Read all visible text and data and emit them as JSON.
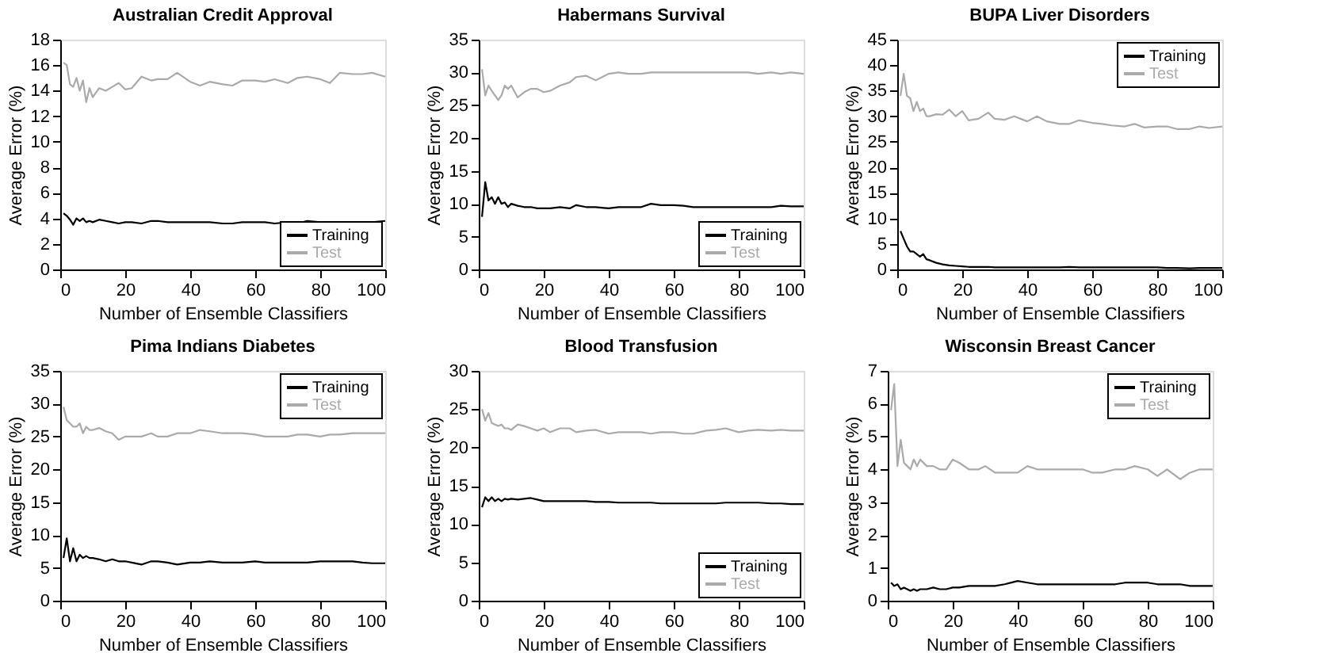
{
  "chart_data": [
    {
      "type": "line",
      "title": "Australian Credit Approval",
      "xlabel": "Number of Ensemble Classifiers",
      "ylabel": "Average Error (%)",
      "x": [
        1,
        2,
        3,
        4,
        5,
        6,
        7,
        8,
        9,
        10,
        12,
        14,
        16,
        18,
        20,
        22,
        25,
        28,
        30,
        33,
        36,
        40,
        43,
        46,
        50,
        53,
        56,
        60,
        63,
        66,
        70,
        73,
        76,
        80,
        83,
        86,
        90,
        93,
        96,
        100
      ],
      "xlim": [
        0,
        100
      ],
      "xticks": [
        0,
        20,
        40,
        60,
        80,
        100
      ],
      "ylim": [
        0,
        18
      ],
      "yticks": [
        0,
        2,
        4,
        6,
        8,
        10,
        12,
        14,
        16,
        18
      ],
      "grid": false,
      "legend": "bottom right",
      "series": [
        {
          "name": "Training",
          "color": "#000000",
          "values": [
            4.4,
            4.2,
            3.9,
            3.5,
            4.0,
            3.8,
            4.0,
            3.7,
            3.8,
            3.7,
            3.9,
            3.8,
            3.7,
            3.6,
            3.7,
            3.7,
            3.6,
            3.8,
            3.8,
            3.7,
            3.7,
            3.7,
            3.7,
            3.7,
            3.6,
            3.6,
            3.7,
            3.7,
            3.7,
            3.6,
            3.7,
            3.6,
            3.8,
            3.7,
            3.7,
            3.7,
            3.7,
            3.7,
            3.7,
            3.8
          ]
        },
        {
          "name": "Test",
          "color": "#aaaaaa",
          "values": [
            16.2,
            16.0,
            14.5,
            14.3,
            15.0,
            14.0,
            14.8,
            13.1,
            14.2,
            13.5,
            14.2,
            14.0,
            14.3,
            14.6,
            14.1,
            14.2,
            15.1,
            14.8,
            14.9,
            14.9,
            15.4,
            14.7,
            14.4,
            14.7,
            14.5,
            14.4,
            14.8,
            14.8,
            14.7,
            14.9,
            14.6,
            15.0,
            15.1,
            14.9,
            14.6,
            15.4,
            15.3,
            15.3,
            15.4,
            15.1
          ]
        }
      ]
    },
    {
      "type": "line",
      "title": "Habermans Survival",
      "xlabel": "Number of Ensemble Classifiers",
      "ylabel": "Average Error (%)",
      "x": [
        1,
        2,
        3,
        4,
        5,
        6,
        7,
        8,
        9,
        10,
        12,
        14,
        16,
        18,
        20,
        22,
        25,
        28,
        30,
        33,
        36,
        40,
        43,
        46,
        50,
        53,
        56,
        60,
        63,
        66,
        70,
        73,
        76,
        80,
        83,
        86,
        90,
        93,
        96,
        100
      ],
      "xlim": [
        0,
        100
      ],
      "xticks": [
        0,
        20,
        40,
        60,
        80,
        100
      ],
      "ylim": [
        0,
        35
      ],
      "yticks": [
        0,
        5,
        10,
        15,
        20,
        25,
        30,
        35
      ],
      "grid": false,
      "legend": "bottom right",
      "series": [
        {
          "name": "Training",
          "color": "#000000",
          "values": [
            8,
            13.3,
            10.5,
            11,
            10,
            11,
            10,
            10.2,
            9.5,
            10,
            9.7,
            9.5,
            9.5,
            9.3,
            9.3,
            9.3,
            9.5,
            9.3,
            9.8,
            9.5,
            9.5,
            9.3,
            9.5,
            9.5,
            9.5,
            10,
            9.8,
            9.8,
            9.7,
            9.5,
            9.5,
            9.5,
            9.5,
            9.5,
            9.5,
            9.5,
            9.5,
            9.7,
            9.6,
            9.6
          ]
        },
        {
          "name": "Test",
          "color": "#aaaaaa",
          "values": [
            30.5,
            26.5,
            28,
            27.2,
            26.5,
            25.8,
            26.5,
            28,
            27.5,
            28,
            26.2,
            27,
            27.5,
            27.5,
            27,
            27.2,
            28,
            28.5,
            29.3,
            29.5,
            28.8,
            29.8,
            30,
            29.8,
            29.8,
            30,
            30,
            30,
            30,
            30,
            30,
            30,
            30,
            30,
            30,
            29.8,
            30,
            29.8,
            30,
            29.8
          ]
        }
      ]
    },
    {
      "type": "line",
      "title": "BUPA Liver Disorders",
      "xlabel": "Number of Ensemble Classifiers",
      "ylabel": "Average Error (%)",
      "x": [
        1,
        2,
        3,
        4,
        5,
        6,
        7,
        8,
        9,
        10,
        12,
        14,
        16,
        18,
        20,
        22,
        25,
        28,
        30,
        33,
        36,
        40,
        43,
        46,
        50,
        53,
        56,
        60,
        63,
        66,
        70,
        73,
        76,
        80,
        83,
        86,
        90,
        93,
        96,
        100
      ],
      "xlim": [
        0,
        100
      ],
      "xticks": [
        0,
        20,
        40,
        60,
        80,
        100
      ],
      "ylim": [
        0,
        45
      ],
      "yticks": [
        0,
        5,
        10,
        15,
        20,
        25,
        30,
        35,
        40,
        45
      ],
      "grid": false,
      "legend": "top right",
      "series": [
        {
          "name": "Training",
          "color": "#000000",
          "values": [
            7.5,
            6,
            4.5,
            3.5,
            3.5,
            3,
            2.5,
            3,
            2,
            1.8,
            1.3,
            1,
            0.8,
            0.7,
            0.6,
            0.5,
            0.5,
            0.5,
            0.4,
            0.4,
            0.4,
            0.4,
            0.4,
            0.4,
            0.4,
            0.5,
            0.4,
            0.4,
            0.4,
            0.4,
            0.4,
            0.4,
            0.4,
            0.4,
            0.3,
            0.3,
            0.2,
            0.3,
            0.3,
            0.3
          ]
        },
        {
          "name": "Test",
          "color": "#aaaaaa",
          "values": [
            34,
            38.3,
            34,
            33.5,
            31,
            32.8,
            31,
            31.5,
            30,
            30,
            30.4,
            30.3,
            31.3,
            30,
            31,
            29.2,
            29.5,
            30.7,
            29.5,
            29.3,
            30,
            29,
            30,
            29,
            28.5,
            28.5,
            29.2,
            28.7,
            28.5,
            28.2,
            28,
            28.5,
            27.8,
            28,
            28,
            27.5,
            27.5,
            28,
            27.7,
            28
          ]
        }
      ]
    },
    {
      "type": "line",
      "title": "Pima Indians Diabetes",
      "xlabel": "Number of Ensemble Classifiers",
      "ylabel": "Average Error (%)",
      "x": [
        1,
        2,
        3,
        4,
        5,
        6,
        7,
        8,
        9,
        10,
        12,
        14,
        16,
        18,
        20,
        22,
        25,
        28,
        30,
        33,
        36,
        40,
        43,
        46,
        50,
        53,
        56,
        60,
        63,
        66,
        70,
        73,
        76,
        80,
        83,
        86,
        90,
        93,
        96,
        100
      ],
      "xlim": [
        0,
        100
      ],
      "xticks": [
        0,
        20,
        40,
        60,
        80,
        100
      ],
      "ylim": [
        0,
        35
      ],
      "yticks": [
        0,
        5,
        10,
        15,
        20,
        25,
        30,
        35
      ],
      "grid": false,
      "legend": "top right",
      "series": [
        {
          "name": "Training",
          "color": "#000000",
          "values": [
            6.5,
            9.5,
            6,
            8,
            6,
            7,
            6.5,
            6.8,
            6.5,
            6.5,
            6.3,
            6,
            6.3,
            6,
            6,
            5.8,
            5.5,
            6,
            6,
            5.8,
            5.5,
            5.8,
            5.8,
            6,
            5.8,
            5.8,
            5.8,
            6,
            5.8,
            5.8,
            5.8,
            5.8,
            5.8,
            6,
            6,
            6,
            6,
            5.8,
            5.7,
            5.7
          ]
        },
        {
          "name": "Test",
          "color": "#aaaaaa",
          "values": [
            29.5,
            27.5,
            27,
            26.5,
            26.5,
            27,
            25.5,
            26.5,
            26,
            26,
            26.3,
            25.8,
            25.5,
            24.5,
            25,
            25,
            25,
            25.5,
            25,
            25,
            25.5,
            25.5,
            26,
            25.8,
            25.5,
            25.5,
            25.5,
            25.3,
            25,
            25,
            25,
            25.3,
            25.3,
            25,
            25.3,
            25.3,
            25.5,
            25.5,
            25.5,
            25.5
          ]
        }
      ]
    },
    {
      "type": "line",
      "title": "Blood Transfusion",
      "xlabel": "Number of Ensemble Classifiers",
      "ylabel": "Average Error (%)",
      "x": [
        1,
        2,
        3,
        4,
        5,
        6,
        7,
        8,
        9,
        10,
        12,
        14,
        16,
        18,
        20,
        22,
        25,
        28,
        30,
        33,
        36,
        40,
        43,
        46,
        50,
        53,
        56,
        60,
        63,
        66,
        70,
        73,
        76,
        80,
        83,
        86,
        90,
        93,
        96,
        100
      ],
      "xlim": [
        0,
        100
      ],
      "xticks": [
        0,
        20,
        40,
        60,
        80,
        100
      ],
      "ylim": [
        0,
        30
      ],
      "yticks": [
        0,
        5,
        10,
        15,
        20,
        25,
        30
      ],
      "grid": false,
      "legend": "bottom right",
      "series": [
        {
          "name": "Training",
          "color": "#000000",
          "values": [
            12.2,
            13.5,
            13,
            13.5,
            13,
            13.3,
            13,
            13.3,
            13.2,
            13.3,
            13.2,
            13.3,
            13.4,
            13.2,
            13,
            13,
            13,
            13,
            13,
            13,
            12.9,
            12.9,
            12.8,
            12.8,
            12.8,
            12.8,
            12.7,
            12.7,
            12.7,
            12.7,
            12.7,
            12.7,
            12.8,
            12.8,
            12.8,
            12.8,
            12.7,
            12.7,
            12.6,
            12.6
          ]
        },
        {
          "name": "Test",
          "color": "#aaaaaa",
          "values": [
            25,
            23.5,
            24.5,
            23.2,
            23,
            22.8,
            23,
            22.5,
            22.5,
            22.3,
            23,
            22.8,
            22.5,
            22.2,
            22.5,
            22,
            22.5,
            22.5,
            22,
            22.2,
            22.3,
            21.8,
            22,
            22,
            22,
            21.8,
            22,
            22,
            21.8,
            21.8,
            22.2,
            22.3,
            22.5,
            22,
            22.2,
            22.3,
            22.2,
            22.3,
            22.2,
            22.2
          ]
        }
      ]
    },
    {
      "type": "line",
      "title": "Wisconsin Breast Cancer",
      "xlabel": "Number of Ensemble Classifiers",
      "ylabel": "Average Error (%)",
      "x": [
        1,
        2,
        3,
        4,
        5,
        6,
        7,
        8,
        9,
        10,
        12,
        14,
        16,
        18,
        20,
        22,
        25,
        28,
        30,
        33,
        36,
        40,
        43,
        46,
        50,
        53,
        56,
        60,
        63,
        66,
        70,
        73,
        76,
        80,
        83,
        86,
        90,
        93,
        96,
        100
      ],
      "xlim": [
        0,
        100
      ],
      "xticks": [
        0,
        20,
        40,
        60,
        80,
        100
      ],
      "ylim": [
        0,
        7
      ],
      "yticks": [
        0,
        1,
        2,
        3,
        4,
        5,
        6,
        7
      ],
      "grid": false,
      "legend": "top right",
      "series": [
        {
          "name": "Training",
          "color": "#000000",
          "values": [
            0.55,
            0.45,
            0.5,
            0.35,
            0.4,
            0.35,
            0.3,
            0.35,
            0.3,
            0.35,
            0.35,
            0.4,
            0.35,
            0.35,
            0.4,
            0.4,
            0.45,
            0.45,
            0.45,
            0.45,
            0.5,
            0.6,
            0.55,
            0.5,
            0.5,
            0.5,
            0.5,
            0.5,
            0.5,
            0.5,
            0.5,
            0.55,
            0.55,
            0.55,
            0.5,
            0.5,
            0.5,
            0.45,
            0.45,
            0.45
          ]
        },
        {
          "name": "Test",
          "color": "#aaaaaa",
          "values": [
            5.8,
            6.6,
            4.1,
            4.9,
            4.2,
            4.1,
            4.0,
            4.3,
            4.1,
            4.3,
            4.1,
            4.1,
            4.0,
            4.0,
            4.3,
            4.2,
            4.0,
            4.0,
            4.1,
            3.9,
            3.9,
            3.9,
            4.1,
            4.0,
            4.0,
            4.0,
            4.0,
            4.0,
            3.9,
            3.9,
            4.0,
            4.0,
            4.1,
            4.0,
            3.8,
            4.0,
            3.7,
            3.9,
            4.0,
            4.0
          ]
        }
      ]
    }
  ]
}
